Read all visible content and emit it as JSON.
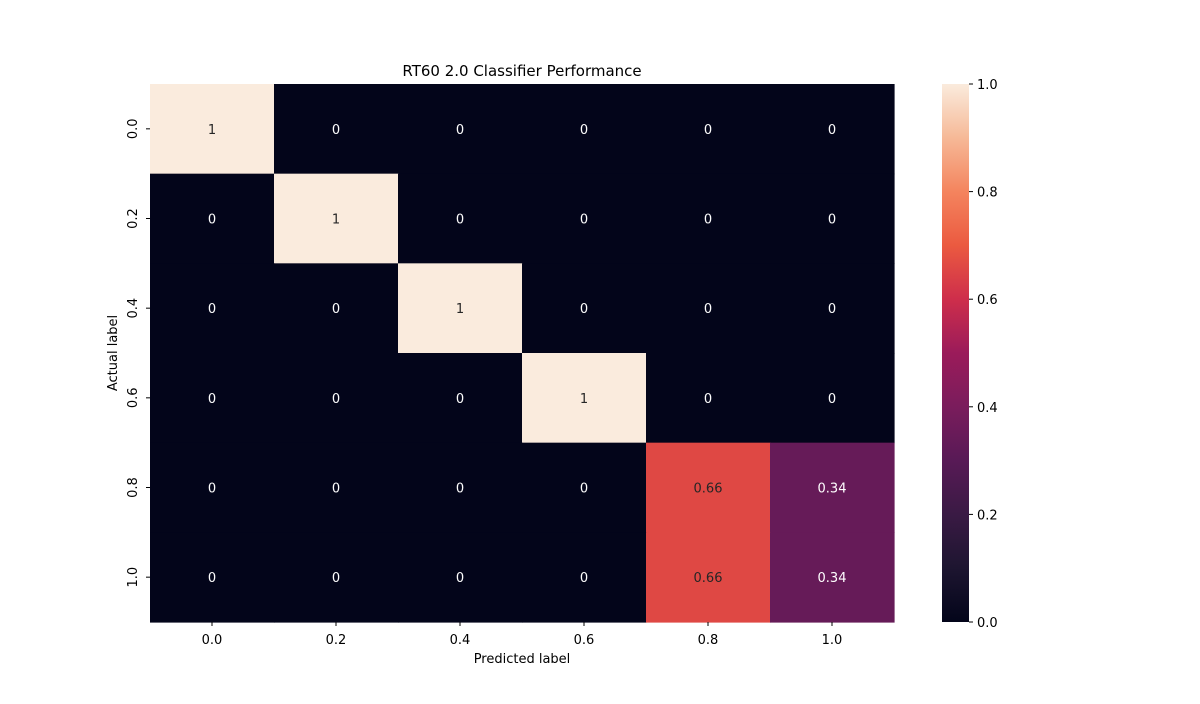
{
  "chart_data": {
    "type": "heatmap",
    "title": "RT60 2.0 Classifier Performance",
    "xlabel": "Predicted label",
    "ylabel": "Actual label",
    "x_categories": [
      "0.0",
      "0.2",
      "0.4",
      "0.6",
      "0.8",
      "1.0"
    ],
    "y_categories": [
      "0.0",
      "0.2",
      "0.4",
      "0.6",
      "0.8",
      "1.0"
    ],
    "values": [
      [
        1,
        0,
        0,
        0,
        0,
        0
      ],
      [
        0,
        1,
        0,
        0,
        0,
        0
      ],
      [
        0,
        0,
        1,
        0,
        0,
        0
      ],
      [
        0,
        0,
        0,
        1,
        0,
        0
      ],
      [
        0,
        0,
        0,
        0,
        0.66,
        0.34
      ],
      [
        0,
        0,
        0,
        0,
        0.66,
        0.34
      ]
    ],
    "annotations": [
      [
        "1",
        "0",
        "0",
        "0",
        "0",
        "0"
      ],
      [
        "0",
        "1",
        "0",
        "0",
        "0",
        "0"
      ],
      [
        "0",
        "0",
        "1",
        "0",
        "0",
        "0"
      ],
      [
        "0",
        "0",
        "0",
        "1",
        "0",
        "0"
      ],
      [
        "0",
        "0",
        "0",
        "0",
        "0.66",
        "0.34"
      ],
      [
        "0",
        "0",
        "0",
        "0",
        "0.66",
        "0.34"
      ]
    ],
    "colorbar": {
      "range": [
        0,
        1
      ],
      "ticks": [
        "0.0",
        "0.2",
        "0.4",
        "0.6",
        "0.8",
        "1.0"
      ],
      "colormap": "rocket"
    }
  }
}
